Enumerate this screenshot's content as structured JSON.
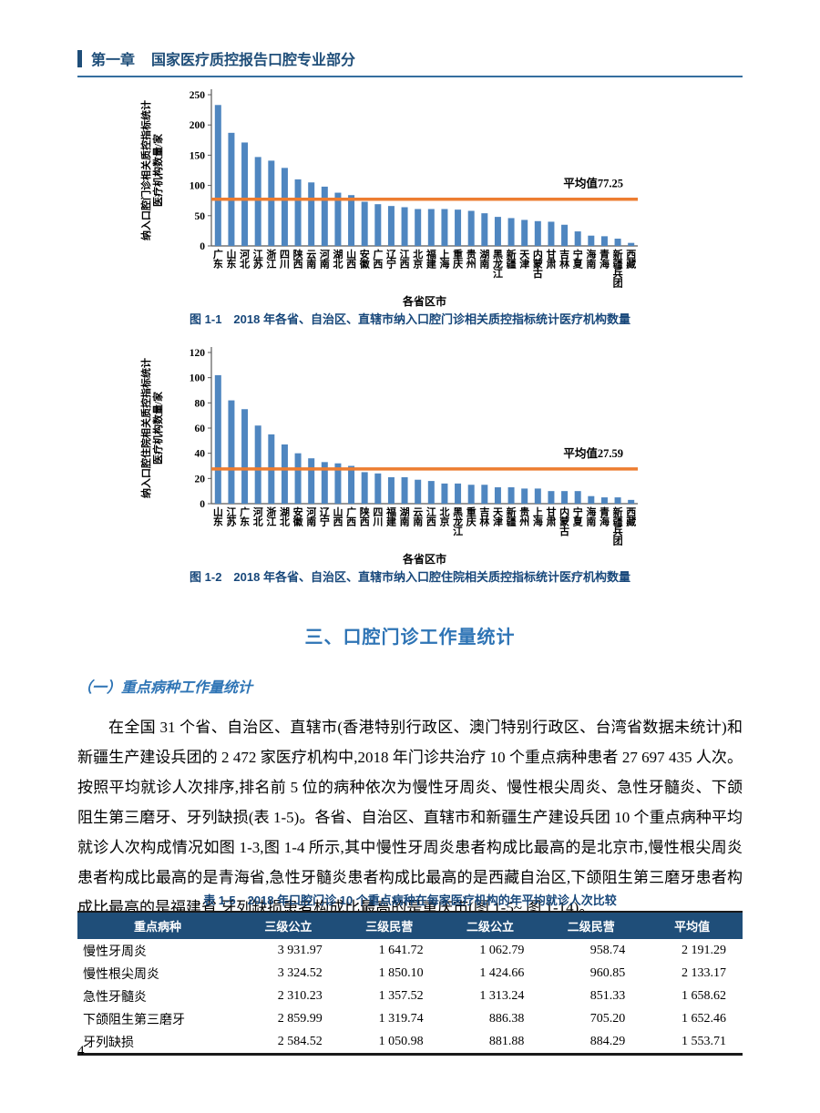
{
  "header": {
    "chapter": "第一章",
    "title": "国家医疗质控报告口腔专业部分"
  },
  "chart_data": [
    {
      "type": "bar",
      "caption": "图 1-1　2018 年各省、自治区、直辖市纳入口腔门诊相关质控指标统计医疗机构数量",
      "ylabel_line1": "纳入口腔门诊相关质控指标统计",
      "ylabel_line2": "医疗机构数量/家",
      "xlabel": "各省区市",
      "ylim": [
        0,
        250
      ],
      "ytick_step": 50,
      "grid": false,
      "average": {
        "value": 77.25,
        "label": "平均值77.25"
      },
      "categories": [
        "广东",
        "山东",
        "河北",
        "江苏",
        "浙江",
        "四川",
        "陕西",
        "云南",
        "河南",
        "湖北",
        "山西",
        "安徽",
        "广西",
        "辽宁",
        "江西",
        "北京",
        "福建",
        "上海",
        "重庆",
        "贵州",
        "湖南",
        "黑龙江",
        "新疆",
        "天津",
        "内蒙古",
        "甘肃",
        "吉林",
        "宁夏",
        "海南",
        "青海",
        "新疆兵团",
        "西藏"
      ],
      "values": [
        233,
        187,
        171,
        147,
        141,
        129,
        110,
        105,
        98,
        88,
        84,
        73,
        69,
        66,
        64,
        61,
        61,
        61,
        60,
        58,
        54,
        48,
        46,
        43,
        41,
        40,
        35,
        24,
        17,
        16,
        12,
        5
      ]
    },
    {
      "type": "bar",
      "caption": "图 1-2　2018 年各省、自治区、直辖市纳入口腔住院相关质控指标统计医疗机构数量",
      "ylabel_line1": "纳入口腔住院相关质控指标统计",
      "ylabel_line2": "医疗机构数量/家",
      "xlabel": "各省区市",
      "ylim": [
        0,
        120
      ],
      "ytick_step": 20,
      "grid": false,
      "average": {
        "value": 27.59,
        "label": "平均值27.59"
      },
      "categories": [
        "山东",
        "江苏",
        "广东",
        "河北",
        "浙江",
        "湖北",
        "安徽",
        "河南",
        "辽宁",
        "山西",
        "广西",
        "陕西",
        "四川",
        "福建",
        "湖南",
        "云南",
        "江西",
        "北京",
        "黑龙江",
        "重庆",
        "吉林",
        "天津",
        "新疆",
        "贵州",
        "上海",
        "甘肃",
        "内蒙古",
        "宁夏",
        "海南",
        "青海",
        "新疆兵团",
        "西藏"
      ],
      "values": [
        102,
        82,
        75,
        62,
        55,
        47,
        40,
        36,
        33,
        32,
        30,
        25,
        24,
        21,
        21,
        19,
        18,
        16,
        16,
        15,
        15,
        13,
        13,
        12,
        12,
        10,
        10,
        10,
        6,
        5,
        5,
        3
      ]
    }
  ],
  "section": {
    "title": "三、口腔门诊工作量统计",
    "subsection": "（一）重点病种工作量统计",
    "paragraph": "在全国 31 个省、自治区、直辖市(香港特别行政区、澳门特别行政区、台湾省数据未统计)和新疆生产建设兵团的 2 472 家医疗机构中,2018 年门诊共治疗 10 个重点病种患者 27 697 435 人次。按照平均就诊人次排序,排名前 5 位的病种依次为慢性牙周炎、慢性根尖周炎、急性牙髓炎、下颌阻生第三磨牙、牙列缺损(表 1-5)。各省、自治区、直辖市和新疆生产建设兵团 10 个重点病种平均就诊人次构成情况如图 1-3,图 1-4 所示,其中慢性牙周炎患者构成比最高的是北京市,慢性根尖周炎患者构成比最高的是青海省,急性牙髓炎患者构成比最高的是西藏自治区,下颌阻生第三磨牙患者构成比最高的是福建省,牙列缺损患者构成比最高的是重庆市(图 1-5~ 图 1-14)。"
  },
  "table": {
    "title": "表 1-5　2018 年口腔门诊 10 个重点病种在每家医疗机构的年平均就诊人次比较",
    "headers": [
      "重点病种",
      "三级公立",
      "三级民营",
      "二级公立",
      "二级民营",
      "平均值"
    ],
    "rows": [
      [
        "慢性牙周炎",
        "3 931.97",
        "1 641.72",
        "1 062.79",
        "958.74",
        "2 191.29"
      ],
      [
        "慢性根尖周炎",
        "3 324.52",
        "1 850.10",
        "1 424.66",
        "960.85",
        "2 133.17"
      ],
      [
        "急性牙髓炎",
        "2 310.23",
        "1 357.52",
        "1 313.24",
        "851.33",
        "1 658.62"
      ],
      [
        "下颌阻生第三磨牙",
        "2 859.99",
        "1 319.74",
        "886.38",
        "705.20",
        "1 652.46"
      ],
      [
        "牙列缺损",
        "2 584.52",
        "1 050.98",
        "881.88",
        "884.29",
        "1 553.71"
      ]
    ]
  },
  "page_number": "4",
  "colors": {
    "bar": "#4f86c0",
    "average_line": "#ed7d31",
    "axis": "#595959",
    "accent_dark": "#1f4e79",
    "accent_mid": "#2e74b5",
    "table_header_bg": "#1f4e79"
  }
}
